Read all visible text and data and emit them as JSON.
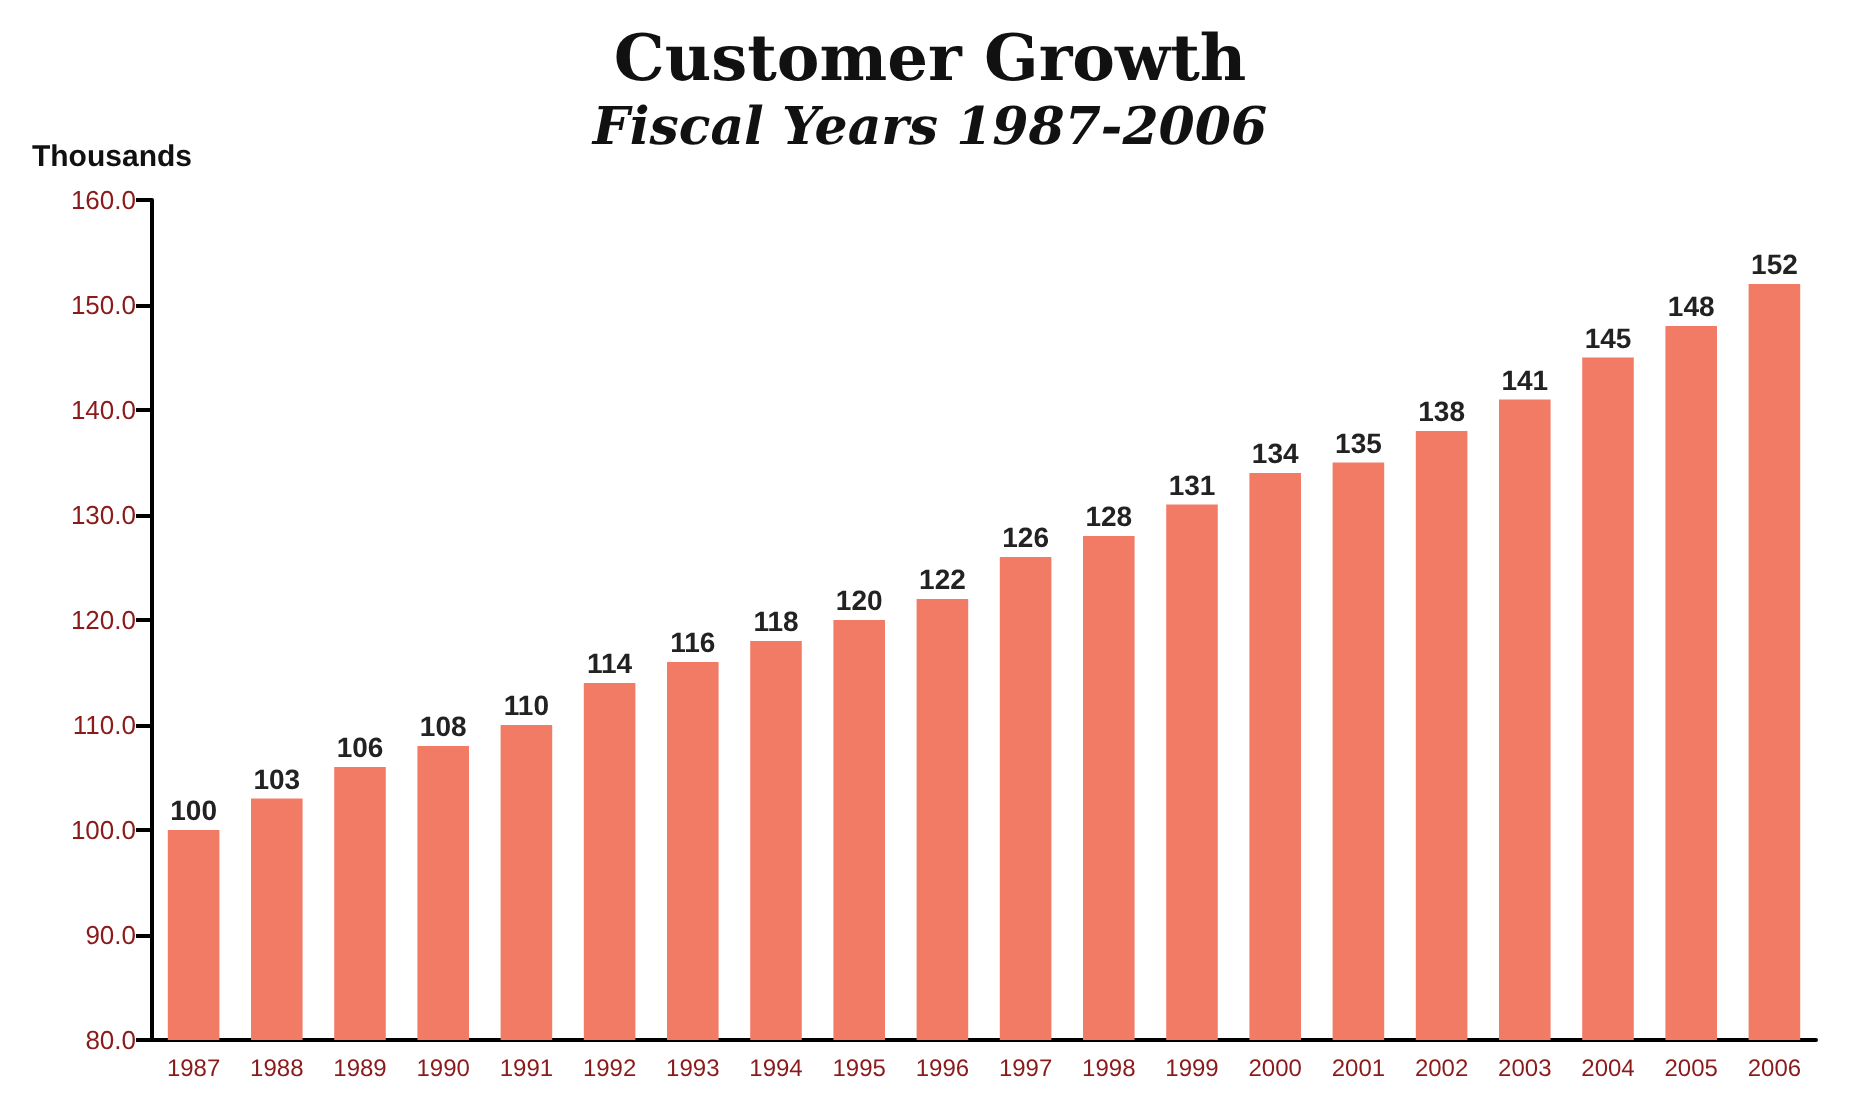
{
  "chart_data": {
    "type": "bar",
    "title": "Customer Growth",
    "subtitle": "Fiscal Years 1987-2006",
    "ylabel": "Thousands",
    "categories": [
      "1987",
      "1988",
      "1989",
      "1990",
      "1991",
      "1992",
      "1993",
      "1994",
      "1995",
      "1996",
      "1997",
      "1998",
      "1999",
      "2000",
      "2001",
      "2002",
      "2003",
      "2004",
      "2005",
      "2006"
    ],
    "values": [
      100,
      103,
      106,
      108,
      110,
      114,
      116,
      118,
      120,
      122,
      126,
      128,
      131,
      134,
      135,
      138,
      141,
      145,
      148,
      152
    ],
    "color": "#f27b65",
    "ylim": [
      80,
      160
    ],
    "yticks": [
      {
        "value": 80,
        "label": "80.0"
      },
      {
        "value": 90,
        "label": "90.0"
      },
      {
        "value": 100,
        "label": "100.0"
      },
      {
        "value": 110,
        "label": "110.0"
      },
      {
        "value": 120,
        "label": "120.0"
      },
      {
        "value": 130,
        "label": "130.0"
      },
      {
        "value": 140,
        "label": "140.0"
      },
      {
        "value": 150,
        "label": "150.0"
      },
      {
        "value": 160,
        "label": "160.0"
      }
    ],
    "grid": false,
    "data_labels": true
  }
}
